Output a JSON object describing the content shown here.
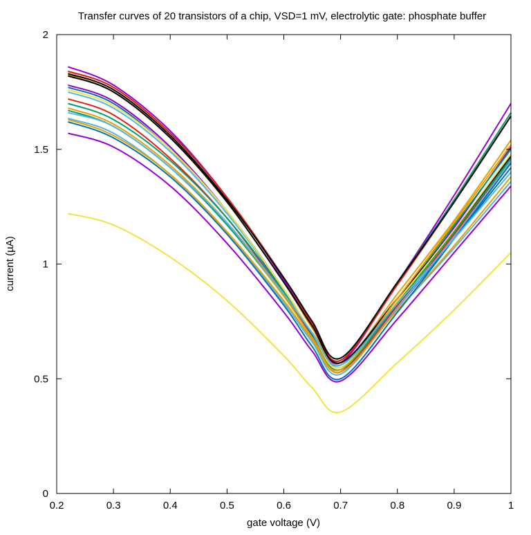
{
  "chart_data": {
    "type": "line",
    "title": "Transfer curves of 20 transistors of a chip, VSD=1 mV, electrolytic gate: phosphate buffer",
    "xlabel": "gate voltage (V)",
    "ylabel": "current (µA)",
    "xlim": [
      0.2,
      1.0
    ],
    "ylim": [
      0,
      2
    ],
    "xticks": [
      "0.2",
      "0.3",
      "0.4",
      "0.5",
      "0.6",
      "0.7",
      "0.8",
      "0.9",
      "1"
    ],
    "yticks": [
      "0",
      "0.5",
      "1",
      "1.5",
      "2"
    ],
    "grid": false,
    "legend": "none",
    "x": [
      0.22,
      0.3,
      0.4,
      0.5,
      0.6,
      0.65,
      0.7,
      0.8,
      0.9,
      1.0
    ],
    "series": [
      {
        "color": "#9400d3",
        "values": [
          1.86,
          1.78,
          1.58,
          1.29,
          0.93,
          0.73,
          0.57,
          0.92,
          1.3,
          1.7
        ]
      },
      {
        "color": "#009e73",
        "values": [
          1.84,
          1.77,
          1.57,
          1.29,
          0.94,
          0.74,
          0.58,
          0.92,
          1.28,
          1.66
        ]
      },
      {
        "color": "#e51e10",
        "values": [
          1.84,
          1.77,
          1.57,
          1.29,
          0.94,
          0.74,
          0.58,
          0.91,
          1.27,
          1.645
        ]
      },
      {
        "color": "#e69f00",
        "values": [
          1.825,
          1.75,
          1.55,
          1.27,
          0.92,
          0.72,
          0.56,
          0.87,
          1.19,
          1.54
        ]
      },
      {
        "color": "#000000",
        "values": [
          1.83,
          1.76,
          1.56,
          1.28,
          0.94,
          0.75,
          0.59,
          0.92,
          1.27,
          1.645
        ]
      },
      {
        "color": "#9400d3",
        "values": [
          1.78,
          1.71,
          1.51,
          1.23,
          0.88,
          0.69,
          0.53,
          0.84,
          1.16,
          1.51
        ]
      },
      {
        "color": "#0072b2",
        "values": [
          1.77,
          1.7,
          1.5,
          1.23,
          0.89,
          0.69,
          0.54,
          0.81,
          1.11,
          1.42
        ]
      },
      {
        "color": "#56b4e9",
        "values": [
          1.75,
          1.68,
          1.49,
          1.22,
          0.89,
          0.7,
          0.55,
          0.8,
          1.07,
          1.36
        ]
      },
      {
        "color": "#e51e10",
        "values": [
          1.72,
          1.65,
          1.46,
          1.2,
          0.87,
          0.68,
          0.53,
          0.82,
          1.13,
          1.46
        ]
      },
      {
        "color": "#009e73",
        "values": [
          1.7,
          1.63,
          1.45,
          1.2,
          0.88,
          0.7,
          0.56,
          0.85,
          1.17,
          1.5
        ]
      },
      {
        "color": "#009e73",
        "values": [
          1.67,
          1.6,
          1.42,
          1.17,
          0.86,
          0.68,
          0.54,
          0.83,
          1.14,
          1.46
        ]
      },
      {
        "color": "#56b4e9",
        "values": [
          1.635,
          1.57,
          1.39,
          1.14,
          0.83,
          0.66,
          0.52,
          0.81,
          1.12,
          1.45
        ]
      },
      {
        "color": "#e69f00",
        "values": [
          1.63,
          1.56,
          1.39,
          1.14,
          0.84,
          0.67,
          0.53,
          0.8,
          1.08,
          1.38
        ]
      },
      {
        "color": "#0072b2",
        "values": [
          1.62,
          1.55,
          1.38,
          1.13,
          0.82,
          0.64,
          0.5,
          0.79,
          1.11,
          1.44
        ]
      },
      {
        "color": "#9400d3",
        "values": [
          1.57,
          1.51,
          1.34,
          1.09,
          0.79,
          0.62,
          0.49,
          0.76,
          1.05,
          1.34
        ]
      },
      {
        "color": "#f0e442",
        "values": [
          1.22,
          1.17,
          1.03,
          0.84,
          0.6,
          0.46,
          0.355,
          0.57,
          0.8,
          1.05
        ]
      },
      {
        "color": "#000000",
        "values": [
          1.82,
          1.75,
          1.55,
          1.27,
          0.92,
          0.73,
          0.57,
          0.85,
          1.15,
          1.47
        ]
      },
      {
        "color": "#f0e442",
        "values": [
          1.76,
          1.69,
          1.5,
          1.23,
          0.89,
          0.7,
          0.55,
          0.84,
          1.15,
          1.48
        ]
      },
      {
        "color": "#e69f00",
        "values": [
          1.68,
          1.61,
          1.43,
          1.18,
          0.86,
          0.68,
          0.54,
          0.85,
          1.18,
          1.52
        ]
      },
      {
        "color": "#56b4e9",
        "values": [
          1.66,
          1.6,
          1.42,
          1.18,
          0.87,
          0.7,
          0.56,
          0.83,
          1.11,
          1.4
        ]
      }
    ]
  }
}
